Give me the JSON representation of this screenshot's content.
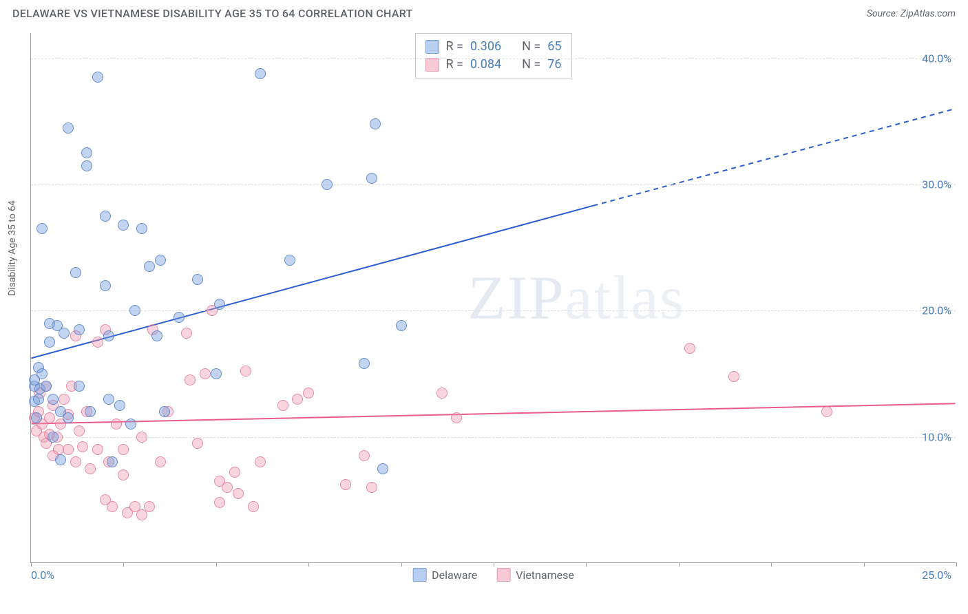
{
  "header": {
    "title": "DELAWARE VS VIETNAMESE DISABILITY AGE 35 TO 64 CORRELATION CHART",
    "source": "Source: ZipAtlas.com"
  },
  "chart": {
    "type": "scatter",
    "xlim": [
      0,
      25
    ],
    "ylim": [
      0,
      42
    ],
    "x_tick_positions": [
      0,
      2.5,
      5,
      7.5,
      10,
      12.5,
      15,
      17.5,
      20,
      22.5,
      25
    ],
    "x_tick_labels_shown": {
      "0": "0.0%",
      "25": "25.0%"
    },
    "y_gridlines": [
      10,
      20,
      30,
      40
    ],
    "y_tick_labels": {
      "10": "10.0%",
      "20": "20.0%",
      "30": "30.0%",
      "40": "40.0%"
    },
    "y_axis_label": "Disability Age 35 to 64",
    "background_color": "#ffffff",
    "grid_color": "#e0e0e0",
    "axis_color": "#9e9e9e",
    "tick_label_color": "#4a7ebb",
    "axis_label_color": "#5f6368",
    "watermark_text_bold": "ZIP",
    "watermark_text_light": "atlas",
    "series": {
      "delaware": {
        "label": "Delaware",
        "fill_color": "rgba(120,160,220,0.45)",
        "stroke_color": "rgba(90,130,200,0.85)",
        "swatch_fill": "#b8cef0",
        "swatch_border": "#7aa0d8",
        "R": "0.306",
        "N": "65",
        "trend": {
          "start": [
            0,
            16.2
          ],
          "solid_end": [
            15.2,
            28.3
          ],
          "dash_end": [
            25,
            36.0
          ],
          "color": "#2b5cd0",
          "width": 2
        },
        "points": [
          [
            0.1,
            14.0
          ],
          [
            0.1,
            14.5
          ],
          [
            0.1,
            12.8
          ],
          [
            0.15,
            11.5
          ],
          [
            0.2,
            13.0
          ],
          [
            0.2,
            15.5
          ],
          [
            0.25,
            13.8
          ],
          [
            0.3,
            26.5
          ],
          [
            0.3,
            15.0
          ],
          [
            0.4,
            14.0
          ],
          [
            0.5,
            19.0
          ],
          [
            0.5,
            17.5
          ],
          [
            0.6,
            13.0
          ],
          [
            0.6,
            10.0
          ],
          [
            0.7,
            18.8
          ],
          [
            0.8,
            12.0
          ],
          [
            0.8,
            8.2
          ],
          [
            0.9,
            18.2
          ],
          [
            1.0,
            11.5
          ],
          [
            1.0,
            34.5
          ],
          [
            1.2,
            23.0
          ],
          [
            1.3,
            18.5
          ],
          [
            1.3,
            14.0
          ],
          [
            1.5,
            31.5
          ],
          [
            1.5,
            32.5
          ],
          [
            1.6,
            12.0
          ],
          [
            1.8,
            38.5
          ],
          [
            2.0,
            27.5
          ],
          [
            2.0,
            22.0
          ],
          [
            2.1,
            18.0
          ],
          [
            2.1,
            13.0
          ],
          [
            2.2,
            8.0
          ],
          [
            2.4,
            12.5
          ],
          [
            2.5,
            26.8
          ],
          [
            2.7,
            11.0
          ],
          [
            2.8,
            20.0
          ],
          [
            3.0,
            26.5
          ],
          [
            3.2,
            23.5
          ],
          [
            3.4,
            18.0
          ],
          [
            3.5,
            24.0
          ],
          [
            3.6,
            12.0
          ],
          [
            4.0,
            19.5
          ],
          [
            4.5,
            22.5
          ],
          [
            5.0,
            15.0
          ],
          [
            5.1,
            20.5
          ],
          [
            6.2,
            38.8
          ],
          [
            7.0,
            24.0
          ],
          [
            8.0,
            30.0
          ],
          [
            9.3,
            34.8
          ],
          [
            9.5,
            7.5
          ],
          [
            9.2,
            30.5
          ],
          [
            9.0,
            15.8
          ],
          [
            10.0,
            18.8
          ]
        ]
      },
      "vietnamese": {
        "label": "Vietnamese",
        "fill_color": "rgba(240,150,175,0.40)",
        "stroke_color": "rgba(225,120,150,0.80)",
        "swatch_fill": "#f6c9d4",
        "swatch_border": "#e89bb0",
        "R": "0.084",
        "N": "76",
        "trend": {
          "start": [
            0,
            11.0
          ],
          "solid_end": [
            25,
            12.6
          ],
          "dash_end": null,
          "color": "#e85d8a",
          "width": 2
        },
        "points": [
          [
            0.1,
            11.5
          ],
          [
            0.15,
            10.5
          ],
          [
            0.2,
            12.0
          ],
          [
            0.25,
            13.5
          ],
          [
            0.3,
            11.0
          ],
          [
            0.35,
            10.0
          ],
          [
            0.4,
            14.0
          ],
          [
            0.4,
            9.5
          ],
          [
            0.5,
            11.5
          ],
          [
            0.5,
            10.2
          ],
          [
            0.6,
            8.5
          ],
          [
            0.6,
            12.5
          ],
          [
            0.7,
            10.0
          ],
          [
            0.75,
            9.0
          ],
          [
            0.8,
            11.0
          ],
          [
            0.9,
            13.0
          ],
          [
            1.0,
            11.8
          ],
          [
            1.0,
            9.0
          ],
          [
            1.1,
            14.0
          ],
          [
            1.2,
            8.0
          ],
          [
            1.2,
            18.0
          ],
          [
            1.3,
            10.5
          ],
          [
            1.4,
            9.2
          ],
          [
            1.5,
            12.0
          ],
          [
            1.6,
            7.5
          ],
          [
            1.8,
            17.5
          ],
          [
            1.8,
            9.0
          ],
          [
            2.0,
            18.5
          ],
          [
            2.0,
            5.0
          ],
          [
            2.1,
            8.0
          ],
          [
            2.2,
            4.5
          ],
          [
            2.3,
            11.0
          ],
          [
            2.5,
            9.0
          ],
          [
            2.5,
            7.0
          ],
          [
            2.6,
            4.0
          ],
          [
            2.8,
            4.5
          ],
          [
            3.0,
            3.8
          ],
          [
            3.0,
            10.0
          ],
          [
            3.2,
            4.5
          ],
          [
            3.3,
            18.5
          ],
          [
            3.5,
            8.0
          ],
          [
            3.7,
            12.0
          ],
          [
            4.2,
            18.2
          ],
          [
            4.3,
            14.5
          ],
          [
            4.5,
            9.5
          ],
          [
            4.7,
            15.0
          ],
          [
            4.9,
            20.0
          ],
          [
            5.1,
            4.8
          ],
          [
            5.1,
            6.5
          ],
          [
            5.3,
            6.0
          ],
          [
            5.5,
            7.2
          ],
          [
            5.6,
            5.5
          ],
          [
            5.8,
            15.2
          ],
          [
            6.0,
            4.5
          ],
          [
            6.2,
            8.0
          ],
          [
            6.8,
            12.5
          ],
          [
            7.2,
            13.0
          ],
          [
            7.5,
            13.5
          ],
          [
            8.5,
            6.2
          ],
          [
            9.0,
            8.5
          ],
          [
            9.2,
            6.0
          ],
          [
            11.1,
            13.5
          ],
          [
            11.5,
            11.5
          ],
          [
            17.8,
            17.0
          ],
          [
            19.0,
            14.8
          ],
          [
            21.5,
            12.0
          ]
        ]
      }
    }
  }
}
